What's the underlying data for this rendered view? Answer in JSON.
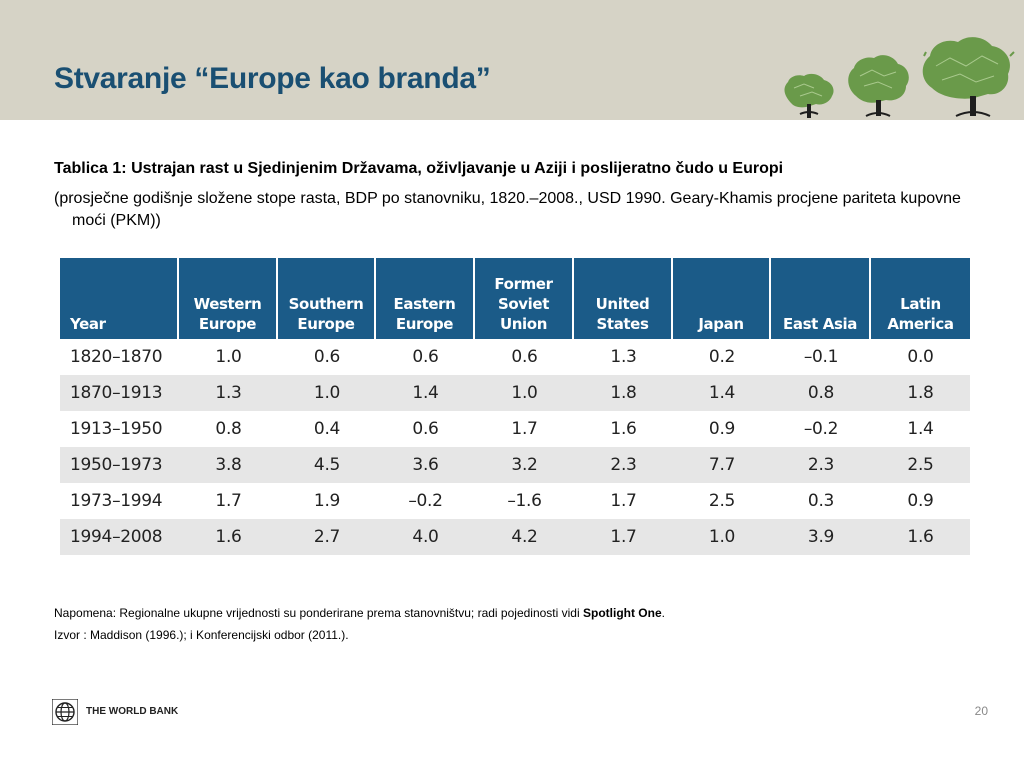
{
  "slide": {
    "title": "Stvaranje “Europe kao branda”",
    "caption": "Tablica 1: Ustrajan rast u Sjedinjenim Državama, oživljavanje u Aziji i poslijeratno čudo u Europi",
    "subcaption": "(prosječne godišnje složene stope rasta, BDP po stanovniku, 1820.–2008., USD 1990. Geary-Khamis procjene pariteta kupovne moći (PKM))",
    "note_prefix": "Napomena: Regionalne ukupne vrijednosti su ponderirane prema stanovništvu; radi pojedinosti vidi ",
    "note_bold": "Spotlight One",
    "note_suffix": ".",
    "source": "Izvor : Maddison (1996.); i Konferencijski odbor (2011.).",
    "footer_logo_text": "THE WORLD BANK",
    "page_number": "20"
  },
  "colors": {
    "header_band": "#d6d3c6",
    "title": "#1a4f72",
    "table_header": "#1b5b88",
    "row_shade": "#e6e6e6",
    "tree_green": "#6a9a4a",
    "tree_trunk": "#1e1e1e"
  },
  "icons": {
    "header_art": "europe-map-trees-icon",
    "logo": "world-bank-globe-icon"
  },
  "table": {
    "headers": [
      [
        "Year"
      ],
      [
        "Western",
        "Europe"
      ],
      [
        "Southern",
        "Europe"
      ],
      [
        "Eastern",
        "Europe"
      ],
      [
        "Former",
        "Soviet",
        "Union"
      ],
      [
        "United",
        "States"
      ],
      [
        "Japan"
      ],
      [
        "East Asia"
      ],
      [
        "Latin",
        "America"
      ]
    ],
    "rows": [
      [
        "1820–1870",
        "1.0",
        "0.6",
        "0.6",
        "0.6",
        "1.3",
        "0.2",
        "–0.1",
        "0.0"
      ],
      [
        "1870–1913",
        "1.3",
        "1.0",
        "1.4",
        "1.0",
        "1.8",
        "1.4",
        "0.8",
        "1.8"
      ],
      [
        "1913–1950",
        "0.8",
        "0.4",
        "0.6",
        "1.7",
        "1.6",
        "0.9",
        "–0.2",
        "1.4"
      ],
      [
        "1950–1973",
        "3.8",
        "4.5",
        "3.6",
        "3.2",
        "2.3",
        "7.7",
        "2.3",
        "2.5"
      ],
      [
        "1973–1994",
        "1.7",
        "1.9",
        "–0.2",
        "–1.6",
        "1.7",
        "2.5",
        "0.3",
        "0.9"
      ],
      [
        "1994–2008",
        "1.6",
        "2.7",
        "4.0",
        "4.2",
        "1.7",
        "1.0",
        "3.9",
        "1.6"
      ]
    ]
  }
}
